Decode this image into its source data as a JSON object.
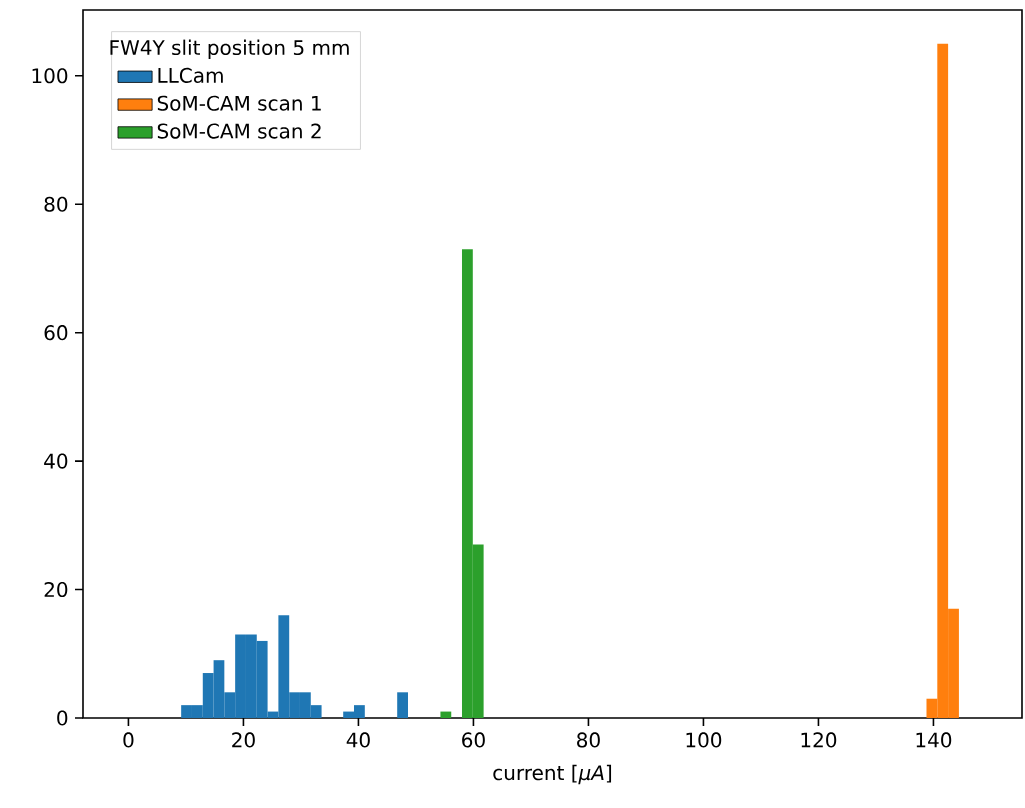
{
  "chart_data": {
    "type": "histogram",
    "xlabel": "current [*μA*]",
    "legend_title": "FW4Y slit position 5 mm",
    "legend": "top left",
    "xlim": [
      -7.9,
      155.4
    ],
    "ylim": [
      0,
      110.25
    ],
    "xticks": [
      0,
      20,
      40,
      60,
      80,
      100,
      120,
      140
    ],
    "yticks": [
      0,
      20,
      40,
      60,
      80,
      100
    ],
    "bins": [
      9.17,
      11.05,
      12.93,
      14.81,
      16.68,
      18.56,
      20.44,
      22.32,
      24.2,
      26.08,
      27.96,
      29.83,
      31.71,
      33.59,
      35.47,
      37.35,
      39.23,
      41.11,
      42.98,
      44.86,
      46.74,
      48.62,
      50.5,
      52.38,
      54.26,
      56.14,
      58.01,
      59.89,
      61.77,
      63.65,
      65.53,
      67.41,
      69.29,
      71.16,
      73.04,
      74.92,
      76.8,
      78.68,
      80.56,
      82.44,
      84.31,
      86.19,
      88.07,
      89.95,
      91.83,
      93.71,
      95.59,
      97.46,
      99.34,
      101.22,
      103.1,
      104.98,
      106.86,
      108.74,
      110.61,
      112.49,
      114.37,
      116.25,
      118.13,
      120.01,
      121.89,
      123.76,
      125.64,
      127.52,
      129.4,
      131.28,
      133.16,
      135.04,
      136.91,
      138.79,
      140.67,
      142.55,
      144.43
    ],
    "series": [
      {
        "name": "LLCam",
        "color": "#1f77b4",
        "values": [
          2,
          2,
          7,
          9,
          4,
          13,
          13,
          12,
          1,
          16,
          4,
          4,
          2,
          0,
          0,
          1,
          2,
          0,
          0,
          0,
          4,
          0,
          0,
          0,
          0,
          0,
          0,
          0,
          0,
          0,
          0,
          0,
          0,
          0,
          0,
          0,
          0,
          0,
          0,
          0,
          0,
          0,
          0,
          0,
          0,
          0,
          0,
          0,
          0,
          0,
          0,
          0,
          0,
          0,
          0,
          0,
          0,
          0,
          0,
          0,
          0,
          0,
          0,
          0,
          0,
          0,
          0,
          0,
          0,
          0,
          0,
          0
        ]
      },
      {
        "name": "SoM-CAM scan 1",
        "color": "#ff7f0e",
        "values": [
          0,
          0,
          0,
          0,
          0,
          0,
          0,
          0,
          0,
          0,
          0,
          0,
          0,
          0,
          0,
          0,
          0,
          0,
          0,
          0,
          0,
          0,
          0,
          0,
          0,
          0,
          0,
          0,
          0,
          0,
          0,
          0,
          0,
          0,
          0,
          0,
          0,
          0,
          0,
          0,
          0,
          0,
          0,
          0,
          0,
          0,
          0,
          0,
          0,
          0,
          0,
          0,
          0,
          0,
          0,
          0,
          0,
          0,
          0,
          0,
          0,
          0,
          0,
          0,
          0,
          0,
          0,
          0,
          0,
          3,
          105,
          17
        ]
      },
      {
        "name": "SoM-CAM scan 2",
        "color": "#2ca02c",
        "values": [
          0,
          0,
          0,
          0,
          0,
          0,
          0,
          0,
          0,
          0,
          0,
          0,
          0,
          0,
          0,
          0,
          0,
          0,
          0,
          0,
          0,
          0,
          0,
          0,
          1,
          0,
          73,
          27,
          0,
          0,
          0,
          0,
          0,
          0,
          0,
          0,
          0,
          0,
          0,
          0,
          0,
          0,
          0,
          0,
          0,
          0,
          0,
          0,
          0,
          0,
          0,
          0,
          0,
          0,
          0,
          0,
          0,
          0,
          0,
          0,
          0,
          0,
          0,
          0,
          0,
          0,
          0,
          0,
          0,
          0,
          0,
          0
        ]
      }
    ]
  }
}
